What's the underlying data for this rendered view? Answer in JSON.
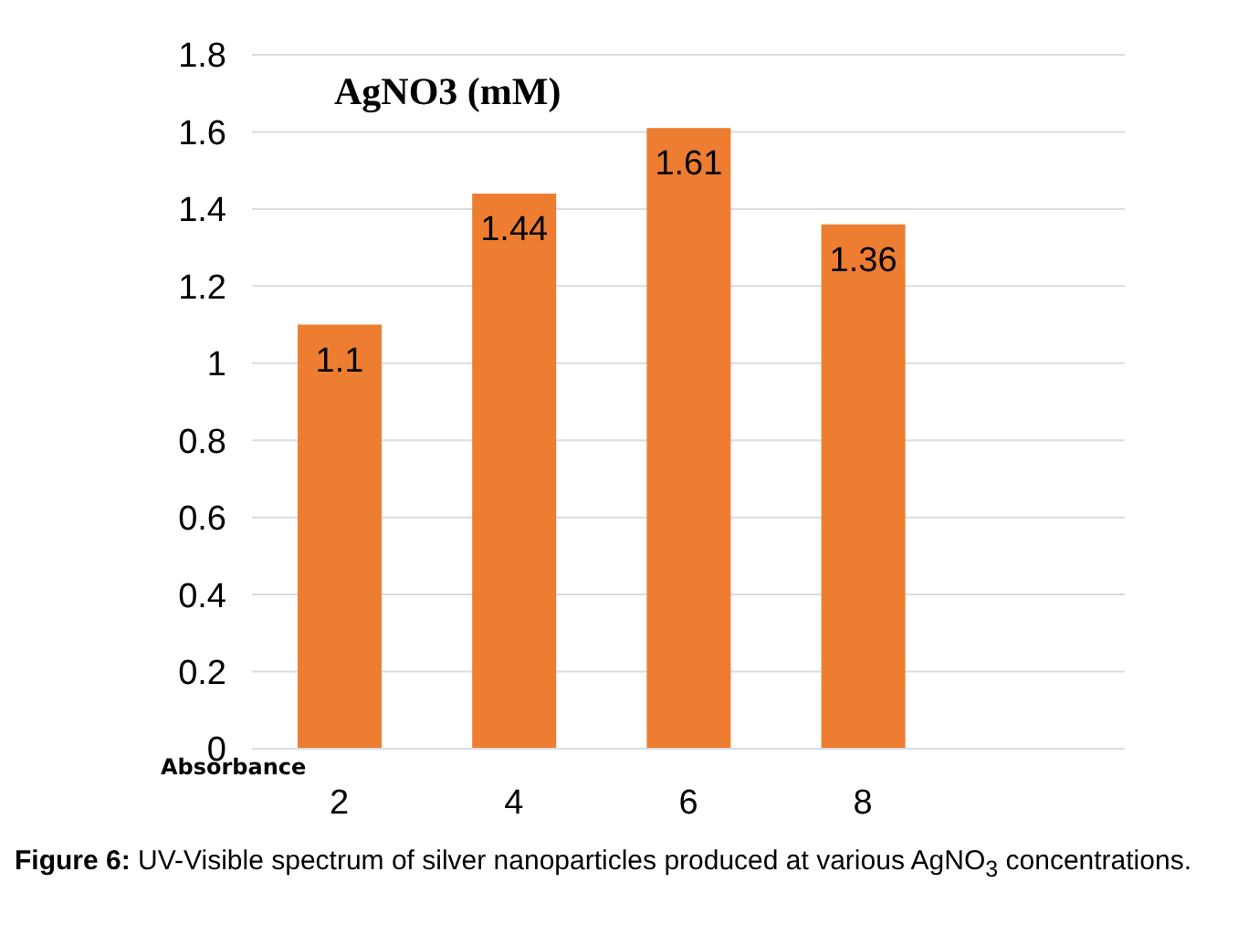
{
  "chart_data": {
    "type": "bar",
    "title": "AgNO3 (mM)",
    "ylabel": "Absorbance",
    "categories": [
      "2",
      "4",
      "6",
      "8",
      null
    ],
    "values": [
      1.1,
      1.44,
      1.61,
      1.36,
      null
    ],
    "color": "#ed7d31",
    "ylim": [
      0,
      1.8
    ],
    "yticks": [
      0,
      0.2,
      0.4,
      0.6,
      0.8,
      1,
      1.2,
      1.4,
      1.6,
      1.8
    ],
    "grid": "y",
    "data_labels": true,
    "annotations": [
      "Figure 6:",
      "UV-Visible spectrum of silver nanoparticles produced at  various AgNO$_{3}$ concentrations."
    ]
  }
}
